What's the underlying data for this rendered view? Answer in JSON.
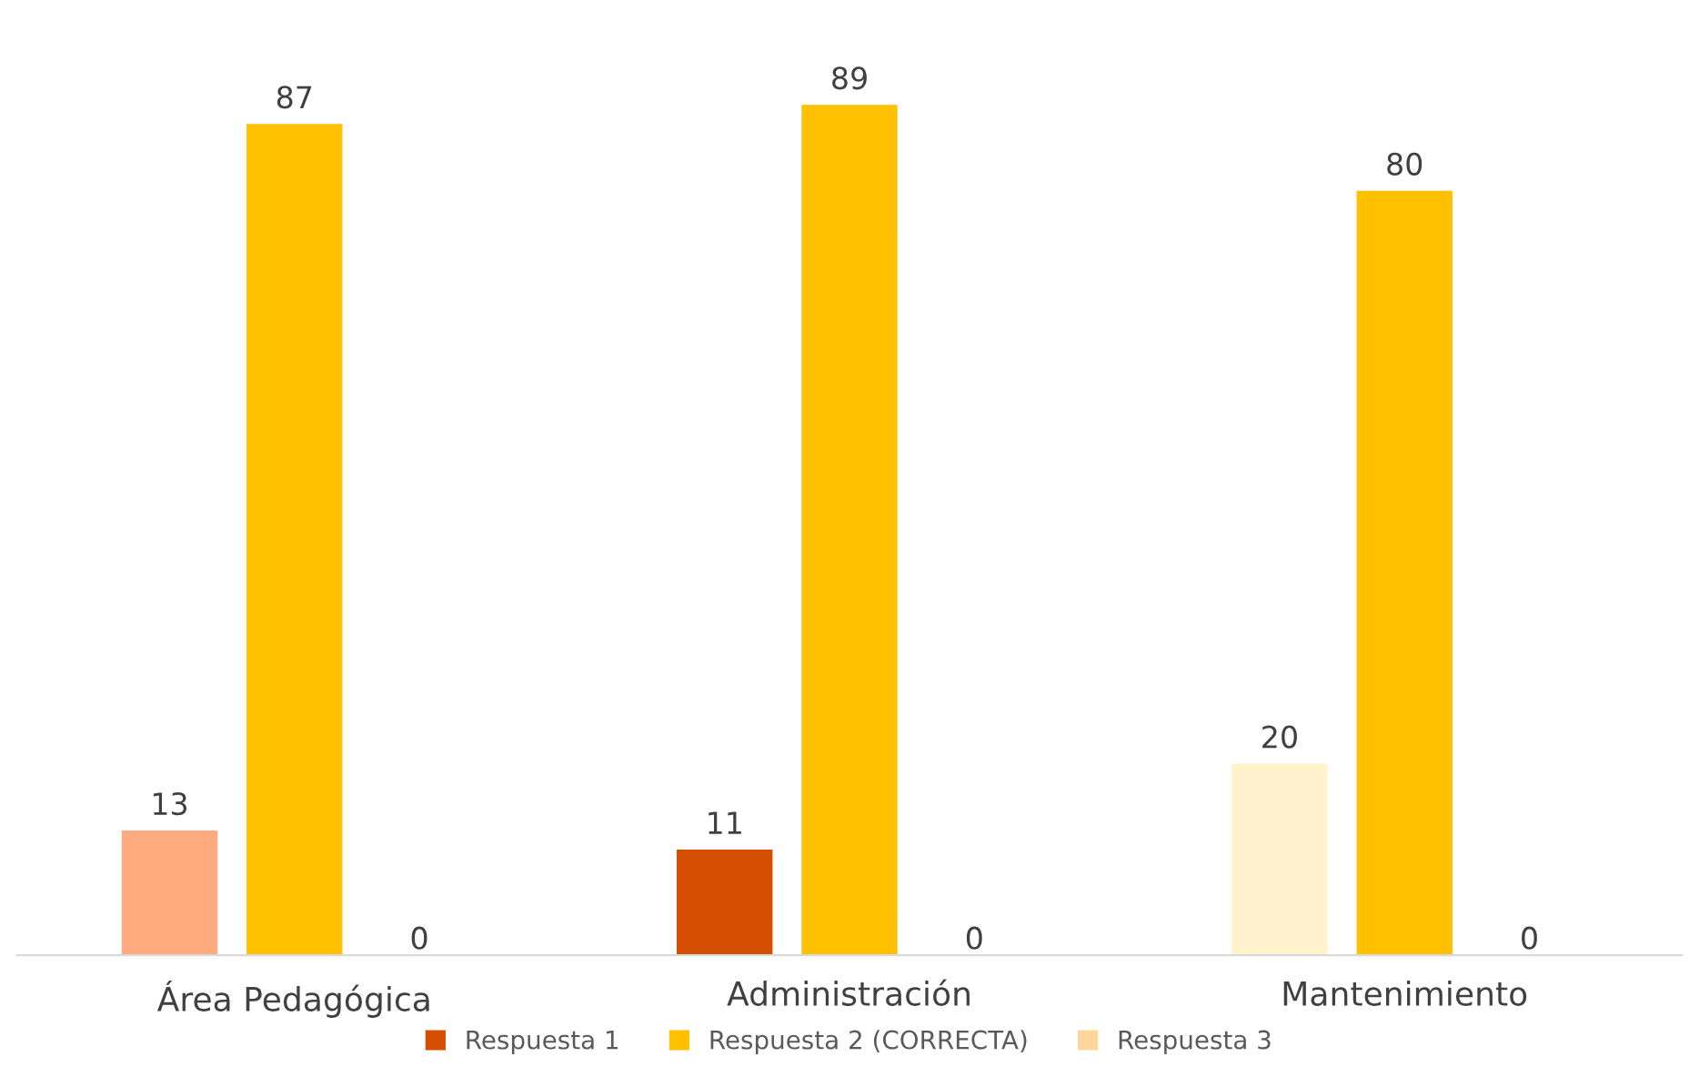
{
  "chart_data": {
    "type": "bar",
    "categories": [
      "Área Pedagógica",
      "Administración",
      "Mantenimiento"
    ],
    "series": [
      {
        "name": "Respuesta 1",
        "colors": [
          "#ffaa7f",
          "#d54f00",
          "#fff2cc"
        ],
        "values": [
          13,
          11,
          20
        ]
      },
      {
        "name": "Respuesta 2 (CORRECTA)",
        "color": "#ffc000",
        "values": [
          87,
          89,
          80
        ]
      },
      {
        "name": "Respuesta 3",
        "color": "#ffd699",
        "values": [
          0,
          0,
          0
        ],
        "value_labels": [
          "0",
          "0",
          "0"
        ]
      }
    ],
    "data_labels": true,
    "legend": "bottom",
    "grid": false
  }
}
